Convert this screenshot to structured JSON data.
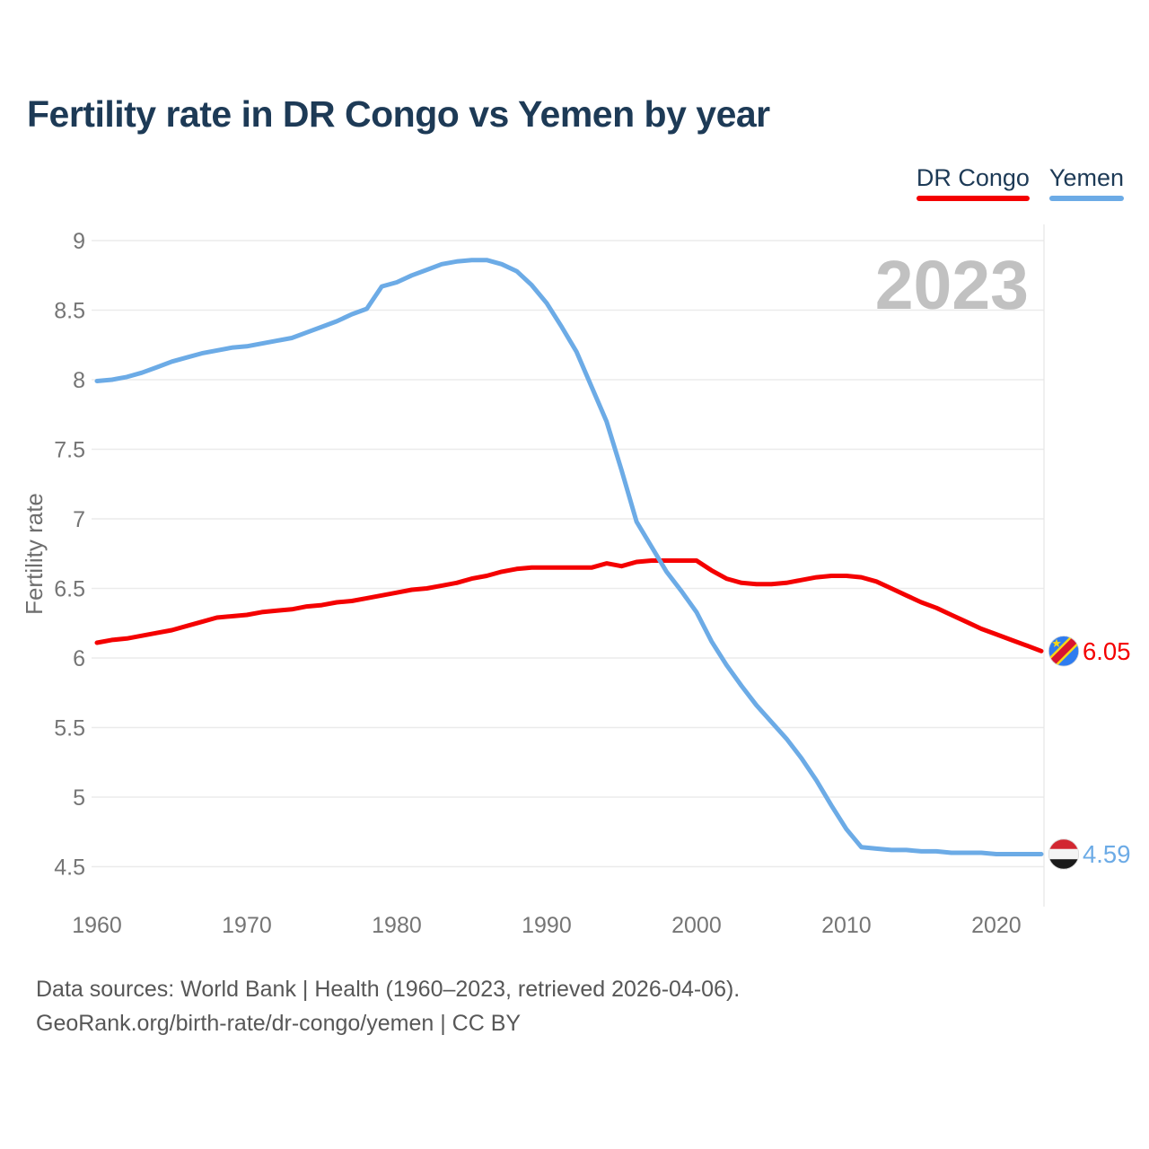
{
  "title": "Fertility rate in DR Congo vs Yemen by year",
  "watermark": "2023",
  "legend": [
    {
      "label": "DR Congo",
      "color": "#f40000"
    },
    {
      "label": "Yemen",
      "color": "#6cabe6"
    }
  ],
  "footer": {
    "line1": "Data sources: World Bank | Health (1960–2023, retrieved 2026-04-06).",
    "line2": "GeoRank.org/birth-rate/dr-congo/yemen | CC BY"
  },
  "chart_data": {
    "type": "line",
    "title": "Fertility rate in DR Congo vs Yemen by year",
    "xlabel": "",
    "ylabel": "Fertility rate",
    "xlim": [
      1960,
      2023
    ],
    "ylim": [
      4.5,
      9
    ],
    "grid": true,
    "legend_position": "top-right",
    "xticks": [
      1960,
      1970,
      1980,
      1990,
      2000,
      2010,
      2020
    ],
    "yticks": [
      9,
      8.5,
      8,
      7.5,
      7,
      6.5,
      6,
      5.5,
      5,
      4.5
    ],
    "x": [
      1960,
      1961,
      1962,
      1963,
      1964,
      1965,
      1966,
      1967,
      1968,
      1969,
      1970,
      1971,
      1972,
      1973,
      1974,
      1975,
      1976,
      1977,
      1978,
      1979,
      1980,
      1981,
      1982,
      1983,
      1984,
      1985,
      1986,
      1987,
      1988,
      1989,
      1990,
      1991,
      1992,
      1993,
      1994,
      1995,
      1996,
      1997,
      1998,
      1999,
      2000,
      2001,
      2002,
      2003,
      2004,
      2005,
      2006,
      2007,
      2008,
      2009,
      2010,
      2011,
      2012,
      2013,
      2014,
      2015,
      2016,
      2017,
      2018,
      2019,
      2020,
      2021,
      2022,
      2023
    ],
    "series": [
      {
        "name": "DR Congo",
        "color": "#f40000",
        "end_label": "6.05",
        "flag": "dr-congo",
        "values": [
          6.11,
          6.13,
          6.14,
          6.16,
          6.18,
          6.2,
          6.23,
          6.26,
          6.29,
          6.3,
          6.31,
          6.33,
          6.34,
          6.35,
          6.37,
          6.38,
          6.4,
          6.41,
          6.43,
          6.45,
          6.47,
          6.49,
          6.5,
          6.52,
          6.54,
          6.57,
          6.59,
          6.62,
          6.64,
          6.65,
          6.65,
          6.65,
          6.65,
          6.65,
          6.68,
          6.66,
          6.69,
          6.7,
          6.7,
          6.7,
          6.7,
          6.63,
          6.57,
          6.54,
          6.53,
          6.53,
          6.54,
          6.56,
          6.58,
          6.59,
          6.59,
          6.58,
          6.55,
          6.5,
          6.45,
          6.4,
          6.36,
          6.31,
          6.26,
          6.21,
          6.17,
          6.13,
          6.09,
          6.05
        ]
      },
      {
        "name": "Yemen",
        "color": "#6cabe6",
        "end_label": "4.59",
        "flag": "yemen",
        "values": [
          7.99,
          8.0,
          8.02,
          8.05,
          8.09,
          8.13,
          8.16,
          8.19,
          8.21,
          8.23,
          8.24,
          8.26,
          8.28,
          8.3,
          8.34,
          8.38,
          8.42,
          8.47,
          8.51,
          8.67,
          8.7,
          8.75,
          8.79,
          8.83,
          8.85,
          8.86,
          8.86,
          8.83,
          8.78,
          8.68,
          8.55,
          8.38,
          8.2,
          7.95,
          7.7,
          7.35,
          6.98,
          6.8,
          6.62,
          6.48,
          6.33,
          6.12,
          5.95,
          5.8,
          5.66,
          5.54,
          5.42,
          5.28,
          5.12,
          4.94,
          4.77,
          4.64,
          4.63,
          4.62,
          4.62,
          4.61,
          4.61,
          4.6,
          4.6,
          4.6,
          4.59,
          4.59,
          4.59,
          4.59
        ]
      }
    ]
  }
}
